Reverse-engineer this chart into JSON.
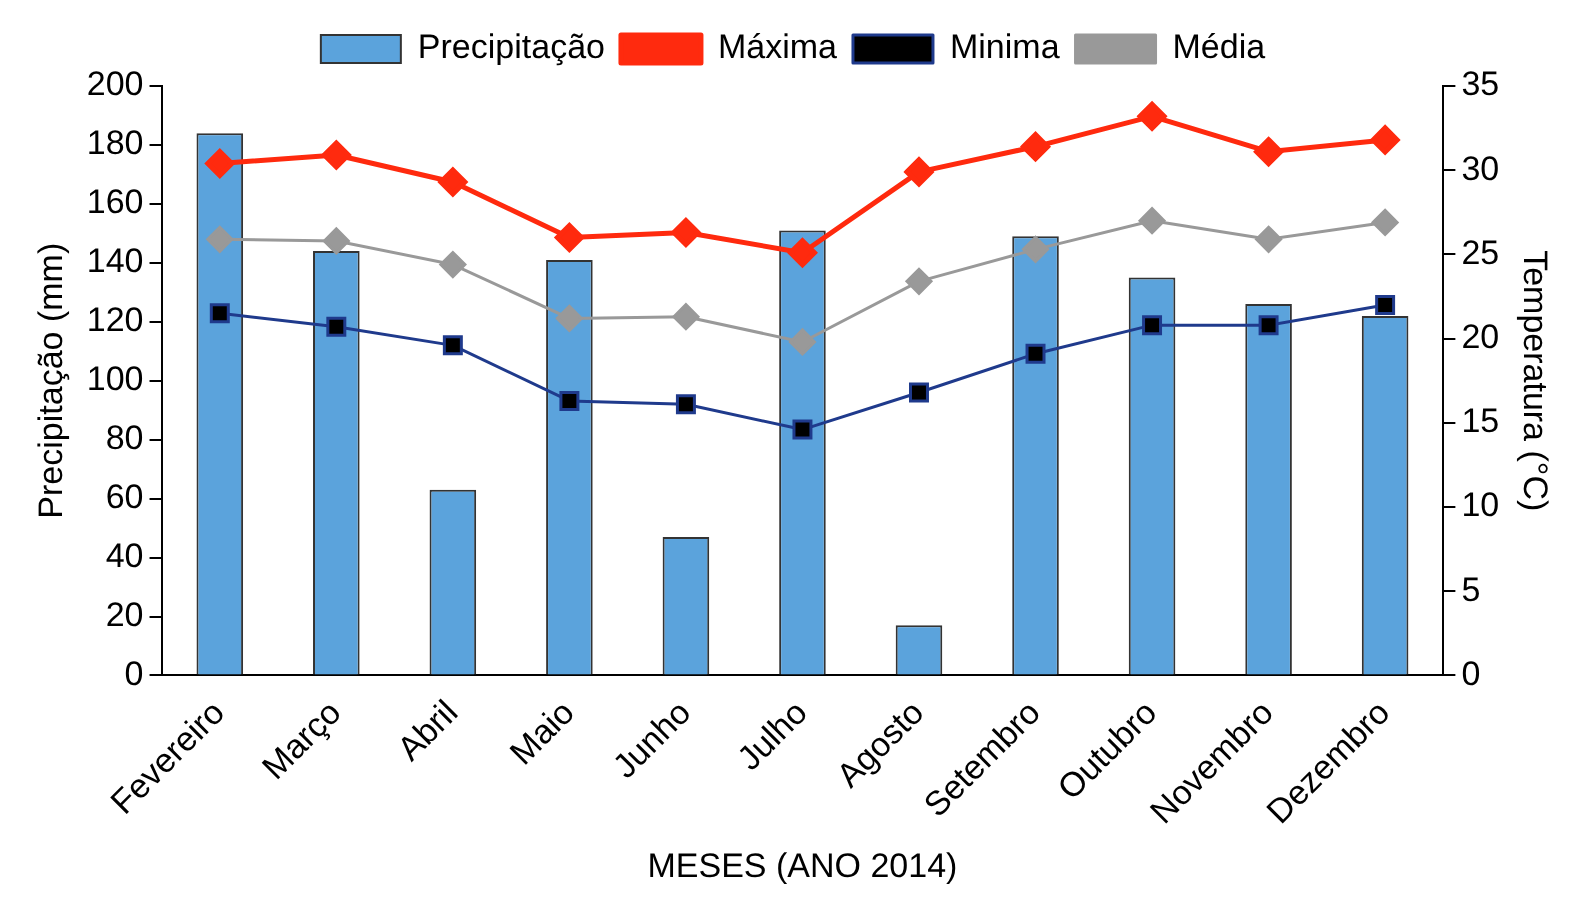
{
  "chart_data": {
    "type": "bar",
    "xlabel": "MESES (ANO 2014)",
    "ylabel": "Precipitação (mm)",
    "y2label": "Temperatura (°C)",
    "categories": [
      "Fevereiro",
      "Março",
      "Abril",
      "Maio",
      "Junho",
      "Julho",
      "Agosto",
      "Setembro",
      "Outubro",
      "Novembro",
      "Dezembro"
    ],
    "series": [
      {
        "name": "Precipitação",
        "color": "#5ba3dc",
        "values": [
          184,
          144,
          63,
          141,
          47,
          151,
          17,
          149,
          135,
          126,
          122
        ]
      },
      {
        "name": "Máxima",
        "type": "line",
        "axis": "y2",
        "color": "#ff2a0e",
        "marker": "diamond",
        "values": [
          30.4,
          30.9,
          29.3,
          26.0,
          26.3,
          25.1,
          29.9,
          31.4,
          33.2,
          31.1,
          31.8
        ]
      },
      {
        "name": "Minima",
        "type": "line",
        "axis": "y2",
        "color": "#1f3a8c",
        "marker": "square",
        "values": [
          21.5,
          20.7,
          19.6,
          16.3,
          16.1,
          14.6,
          16.8,
          19.1,
          20.8,
          20.8,
          22.0
        ]
      },
      {
        "name": "Média",
        "type": "line",
        "axis": "y2",
        "color": "#999999",
        "marker": "diamond",
        "values": [
          25.9,
          25.8,
          24.4,
          21.2,
          21.3,
          19.8,
          23.4,
          25.3,
          27.0,
          25.9,
          26.9
        ]
      }
    ],
    "ylim": [
      0,
      200
    ],
    "yticks": [
      0,
      20,
      40,
      60,
      80,
      100,
      120,
      140,
      160,
      180,
      200
    ],
    "y2lim": [
      0,
      35
    ],
    "y2ticks": [
      0,
      5,
      10,
      15,
      20,
      25,
      30,
      35
    ],
    "grid": false,
    "legend": "top"
  }
}
